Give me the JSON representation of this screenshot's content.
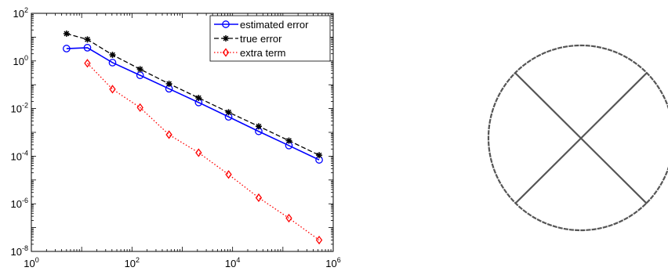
{
  "chart_data": {
    "type": "line",
    "xscale": "log",
    "yscale": "log",
    "xlim": [
      1,
      1000000
    ],
    "ylim": [
      1e-08,
      100
    ],
    "grid": false,
    "legend_position": "top-right",
    "x_ticks": [
      {
        "base": "10",
        "exp": "0",
        "value": 1
      },
      {
        "base": "10",
        "exp": "2",
        "value": 100
      },
      {
        "base": "10",
        "exp": "4",
        "value": 10000
      },
      {
        "base": "10",
        "exp": "6",
        "value": 1000000
      }
    ],
    "y_ticks": [
      {
        "base": "10",
        "exp": "2",
        "value": 100
      },
      {
        "base": "10",
        "exp": "0",
        "value": 1
      },
      {
        "base": "10",
        "exp": "-2",
        "value": 0.01
      },
      {
        "base": "10",
        "exp": "-4",
        "value": 0.0001
      },
      {
        "base": "10",
        "exp": "-6",
        "value": 1e-06
      },
      {
        "base": "10",
        "exp": "-8",
        "value": 1e-08
      }
    ],
    "series": [
      {
        "name": "estimated error",
        "color": "#0000ff",
        "line_style": "solid",
        "marker": "circle",
        "x": [
          5,
          13,
          41,
          145,
          545,
          2113,
          8321,
          33025,
          131585,
          525313
        ],
        "y": [
          3.3,
          3.6,
          0.85,
          0.25,
          0.068,
          0.018,
          0.0045,
          0.0011,
          0.00028,
          7e-05
        ]
      },
      {
        "name": "true error",
        "color": "#000000",
        "line_style": "dashed",
        "marker": "star",
        "x": [
          5,
          13,
          41,
          145,
          545,
          2113,
          8321,
          33025,
          131585,
          525313
        ],
        "y": [
          14,
          8,
          1.8,
          0.45,
          0.11,
          0.028,
          0.007,
          0.0018,
          0.00045,
          0.00011
        ]
      },
      {
        "name": "extra term",
        "color": "#ff0000",
        "line_style": "dotted",
        "marker": "diamond",
        "x": [
          13,
          41,
          145,
          545,
          2113,
          8321,
          33025,
          131585,
          525313
        ],
        "y": [
          0.8,
          0.065,
          0.011,
          0.0008,
          0.00014,
          1.7e-05,
          1.8e-06,
          2.5e-07,
          3e-08
        ]
      }
    ]
  },
  "diagram": {
    "shape": "circle",
    "stroke_color": "#555555",
    "description_elements": [
      "circle-outline",
      "diagonal-line-a",
      "diagonal-line-b"
    ]
  }
}
